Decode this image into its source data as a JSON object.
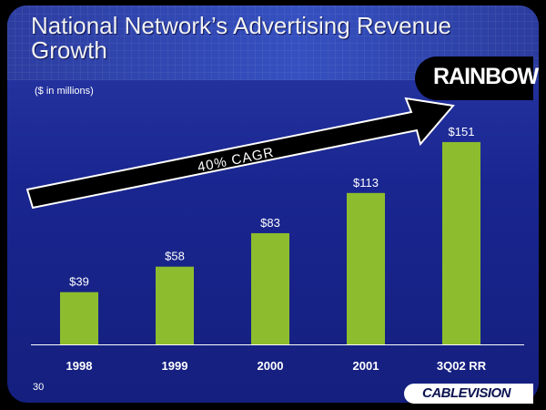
{
  "slide": {
    "title": "National Network’s Advertising Revenue Growth",
    "units_note": "($ in millions)",
    "page_number": "30",
    "logos": {
      "top_right": "RAINBOW",
      "bottom_right": "CABLEVISION"
    }
  },
  "chart_data": {
    "type": "bar",
    "title": "",
    "xlabel": "",
    "ylabel": "",
    "categories": [
      "1998",
      "1999",
      "2000",
      "2001",
      "3Q02 RR"
    ],
    "values": [
      39,
      58,
      83,
      113,
      151
    ],
    "value_labels": [
      "$39",
      "$58",
      "$83",
      "$113",
      "$151"
    ],
    "ylim": [
      0,
      170
    ],
    "grid": false,
    "bar_color": "#8dbd2e",
    "annotation": "40% CAGR"
  },
  "colors": {
    "background": "#1a2690",
    "bar": "#8dbd2e",
    "text": "#ffffff",
    "arrow_fill": "#000000",
    "arrow_outline": "#ffffff"
  }
}
